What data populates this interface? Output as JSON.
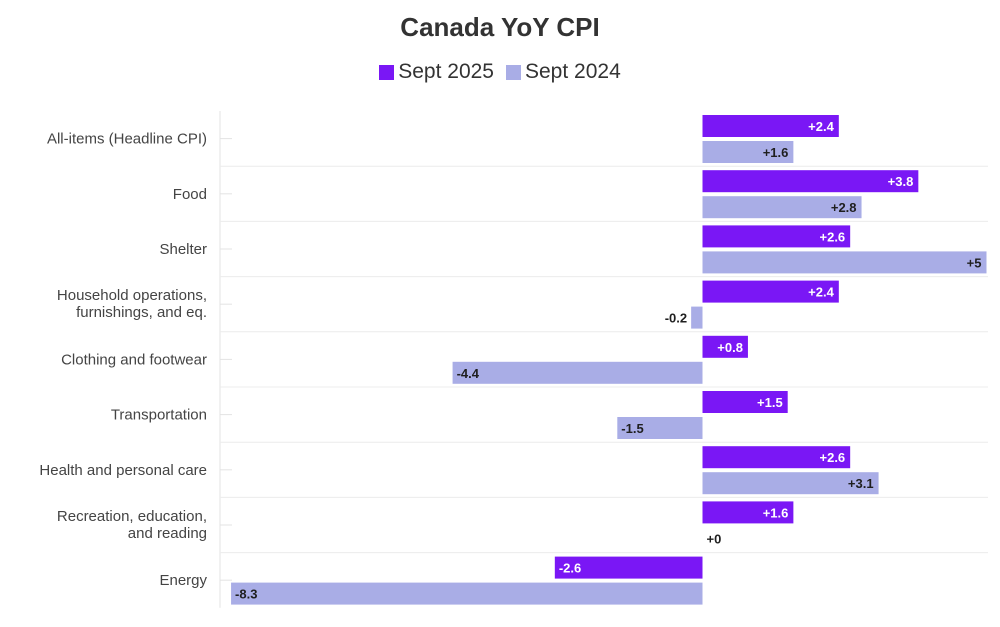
{
  "chart_data": {
    "type": "bar",
    "orientation": "horizontal",
    "title": "Canada YoY CPI",
    "categories": [
      [
        "All-items (Headline CPI)"
      ],
      [
        "Food"
      ],
      [
        "Shelter"
      ],
      [
        "Household operations,",
        "furnishings, and eq."
      ],
      [
        "Clothing and footwear"
      ],
      [
        "Transportation"
      ],
      [
        "Health and personal care"
      ],
      [
        "Recreation, education,",
        "and reading"
      ],
      [
        "Energy"
      ]
    ],
    "series": [
      {
        "name": "Sept 2025",
        "color": "#7a17f5",
        "values": [
          2.4,
          3.8,
          2.6,
          2.4,
          0.8,
          1.5,
          2.6,
          1.6,
          -2.6
        ],
        "labels": [
          "+2.4",
          "+3.8",
          "+2.6",
          "+2.4",
          "+0.8",
          "+1.5",
          "+2.6",
          "+1.6",
          "-2.6"
        ]
      },
      {
        "name": "Sept 2024",
        "color": "#a9ade6",
        "values": [
          1.6,
          2.8,
          5.0,
          -0.2,
          -4.4,
          -1.5,
          3.1,
          0.0,
          -8.3
        ],
        "labels": [
          "+1.6",
          "+2.8",
          "+5",
          "-0.2",
          "-4.4",
          "-1.5",
          "+3.1",
          "+0",
          "-8.3"
        ]
      }
    ],
    "xlim": [
      -8.5,
      5.0
    ],
    "grid": "horizontal separators",
    "legend_position": "top-center"
  }
}
